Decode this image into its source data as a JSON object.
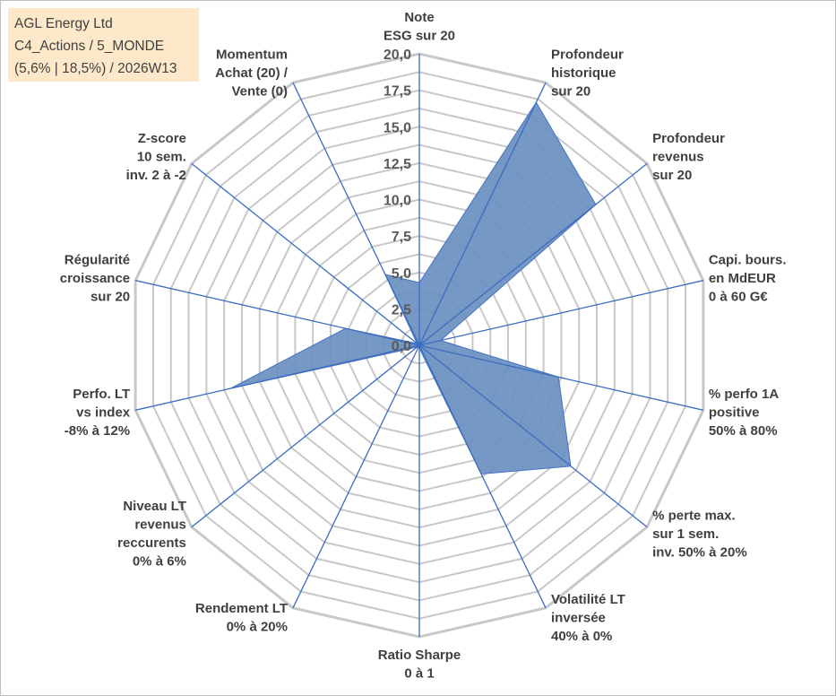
{
  "info": {
    "line1": "AGL Energy Ltd",
    "line2": "C4_Actions / 5_MONDE",
    "line3": "(5,6% | 18,5%) / 2026W13"
  },
  "colors": {
    "fill": "#6a8fbf",
    "stroke": "#4472c4",
    "grid": "#c8c8c8",
    "spoke": "#3a6cc0"
  },
  "chart_data": {
    "type": "radar",
    "rmax": 20,
    "grid_step": 1.25,
    "ticks": [
      {
        "v": 0,
        "label": "0,0"
      },
      {
        "v": 2.5,
        "label": "2,5"
      },
      {
        "v": 5,
        "label": "5,0"
      },
      {
        "v": 7.5,
        "label": "7,5"
      },
      {
        "v": 10,
        "label": "10,0"
      },
      {
        "v": 12.5,
        "label": "12,5"
      },
      {
        "v": 15,
        "label": "15,0"
      },
      {
        "v": 17.5,
        "label": "17,5"
      },
      {
        "v": 20,
        "label": "20,0"
      }
    ],
    "axes": [
      {
        "lines": [
          "Note",
          "ESG sur 20"
        ],
        "value": 4.3
      },
      {
        "lines": [
          "Profondeur",
          "historique",
          "sur 20"
        ],
        "value": 18.5
      },
      {
        "lines": [
          "Profondeur",
          "revenus",
          "sur 20"
        ],
        "value": 15.5
      },
      {
        "lines": [
          "Capi. bours.",
          "en MdEUR",
          "0 à 60 G€"
        ],
        "value": 1.5
      },
      {
        "lines": [
          "% perfo 1A",
          "positive",
          "50% à 80%"
        ],
        "value": 9.8
      },
      {
        "lines": [
          "% perte max.",
          "sur 1 sem.",
          "inv. 50% à 20%"
        ],
        "value": 13.3
      },
      {
        "lines": [
          "Volatilité LT",
          "inversée",
          "40% à 0%"
        ],
        "value": 9.8
      },
      {
        "lines": [
          "Ratio Sharpe",
          "0 à 1"
        ],
        "value": 0.2
      },
      {
        "lines": [
          "Rendement LT",
          "0% à 20%"
        ],
        "value": 0.2
      },
      {
        "lines": [
          "Niveau LT",
          "revenus",
          "reccurents",
          "0% à 6%"
        ],
        "value": 0.2
      },
      {
        "lines": [
          "Perfo. LT",
          "vs index",
          "-8% à 12%"
        ],
        "value": 13.3
      },
      {
        "lines": [
          "Régularité",
          "croissance",
          "sur 20"
        ],
        "value": 5.2
      },
      {
        "lines": [
          "Z-score",
          "10 sem.",
          "inv. 2 à -2"
        ],
        "value": 0.2
      },
      {
        "lines": [
          "Momentum",
          "Achat (20) /",
          "Vente (0)"
        ],
        "value": 5.4
      }
    ]
  }
}
